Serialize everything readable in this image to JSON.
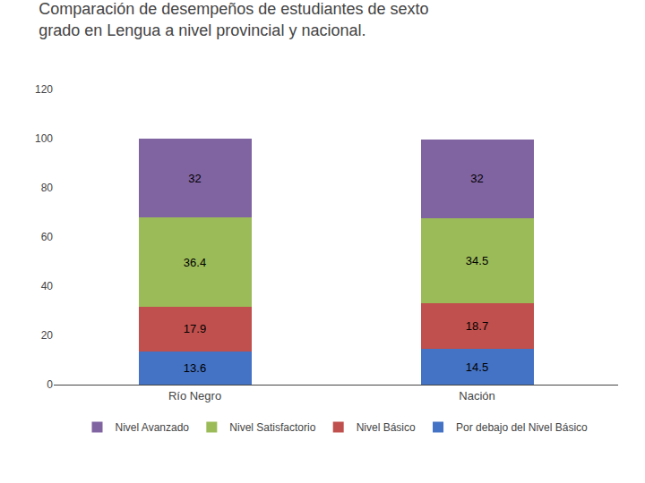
{
  "chart_data": {
    "type": "bar",
    "stacked": true,
    "title": "Comparación de desempeños de estudiantes de sexto\ngrado en Lengua a nivel provincial y nacional.",
    "categories": [
      "Río Negro",
      "Nación"
    ],
    "series": [
      {
        "name": "Por debajo del Nivel Básico",
        "values": [
          13.6,
          14.5
        ],
        "color": "#4472C4"
      },
      {
        "name": "Nivel Básico",
        "values": [
          17.9,
          18.7
        ],
        "color": "#C0504D"
      },
      {
        "name": "Nivel Satisfactorio",
        "values": [
          36.4,
          34.5
        ],
        "color": "#9BBB59"
      },
      {
        "name": "Nivel Avanzado",
        "values": [
          32.0,
          32.0
        ],
        "color": "#8064A2"
      }
    ],
    "ylim": [
      0,
      120
    ],
    "yticks": [
      0,
      20,
      40,
      60,
      80,
      100,
      120
    ],
    "grid": false,
    "data_labels": true,
    "legend": "bottom"
  }
}
